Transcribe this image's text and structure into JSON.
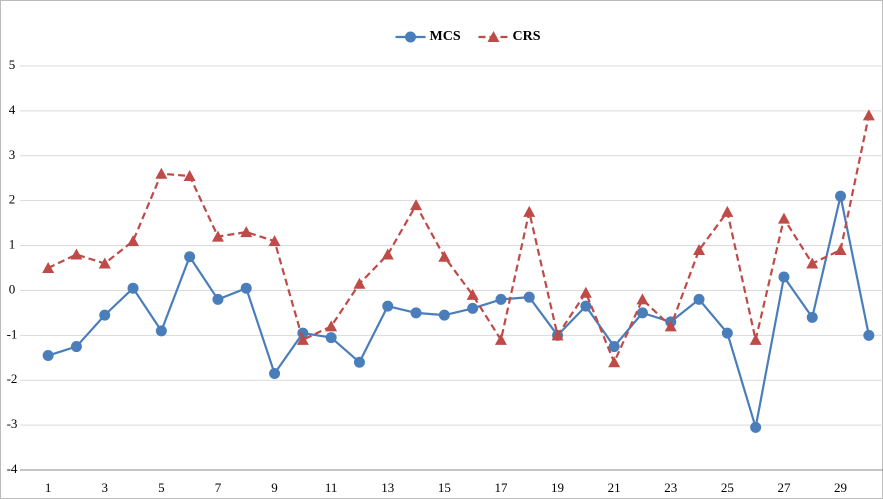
{
  "chart_data": {
    "type": "line",
    "categories": [
      "1",
      null,
      "3",
      null,
      "5",
      null,
      "7",
      null,
      "9",
      null,
      "11",
      null,
      "13",
      null,
      "15",
      null,
      "17",
      null,
      "19",
      null,
      "21",
      null,
      "23",
      null,
      "25",
      null,
      "27",
      null,
      "29",
      null
    ],
    "series": [
      {
        "name": "MCS",
        "color": "#4a7ebb",
        "marker": "circle",
        "dashed": false,
        "values": [
          -1.45,
          -1.25,
          -0.55,
          0.05,
          -0.9,
          0.75,
          -0.2,
          0.05,
          -1.85,
          -0.95,
          -1.05,
          -1.6,
          -0.35,
          -0.5,
          -0.55,
          -0.4,
          -0.2,
          -0.15,
          -1.0,
          -0.35,
          -1.25,
          -0.5,
          -0.7,
          -0.2,
          -0.95,
          -3.05,
          0.3,
          -0.6,
          2.1,
          -1.0
        ]
      },
      {
        "name": "CRS",
        "color": "#be4b48",
        "marker": "triangle",
        "dashed": true,
        "values": [
          0.5,
          0.8,
          0.6,
          1.1,
          2.6,
          2.55,
          1.2,
          1.3,
          1.1,
          -1.1,
          -0.8,
          0.15,
          0.8,
          1.9,
          0.75,
          -0.1,
          -1.1,
          1.75,
          -1.0,
          -0.05,
          -1.6,
          -0.2,
          -0.8,
          0.9,
          1.75,
          -1.1,
          1.6,
          0.6,
          0.9,
          3.9
        ]
      }
    ],
    "ylim": [
      -4,
      5
    ],
    "yticks": [
      -4,
      -3,
      -2,
      -1,
      0,
      1,
      2,
      3,
      4,
      5
    ],
    "grid": true,
    "legend": "top"
  }
}
